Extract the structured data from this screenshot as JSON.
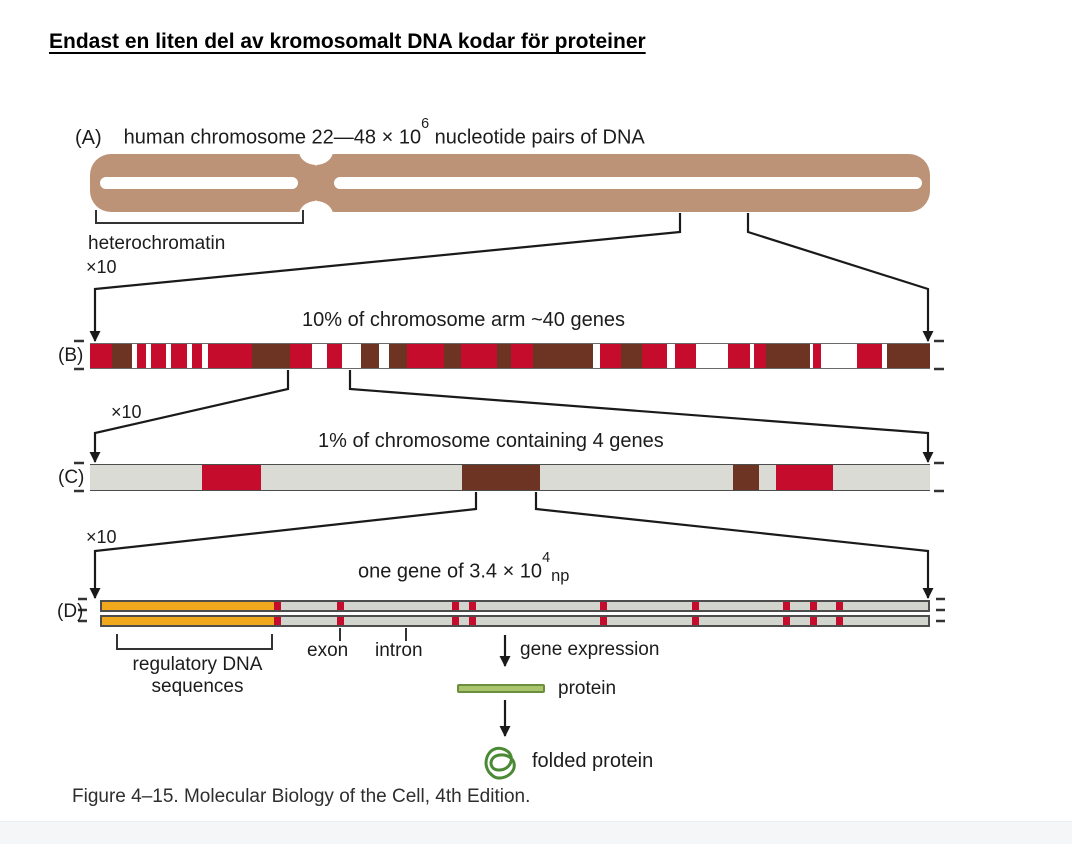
{
  "title": "Endast en liten del av kromosomalt DNA kodar för proteiner",
  "colors": {
    "chromosome_tan": "#bd9377",
    "red": "#c60c2d",
    "maroon": "#6e3423",
    "gray_c": "#d9dbd4",
    "gray_d": "#d2d4ce",
    "orange": "#f0a91c",
    "protein_green_fill": "#aac46c",
    "protein_green_edge": "#6b8f3e",
    "folded_protein_green": "#4a8a35"
  },
  "zoom_label": "×10",
  "panelA": {
    "label": "(A)",
    "caption_pre": "human chromosome 22—48 × 10",
    "caption_sup": "6",
    "caption_post": " nucleotide pairs of DNA",
    "heterochromatin_label": "heterochromatin"
  },
  "panelB": {
    "label": "(B)",
    "caption": "10% of chromosome arm ~40 genes",
    "segments": [
      {
        "c": "red",
        "w": 2.6
      },
      {
        "c": "maroon",
        "w": 2.4
      },
      {
        "c": "white",
        "w": 0.6
      },
      {
        "c": "red",
        "w": 1.1
      },
      {
        "c": "white",
        "w": 0.6
      },
      {
        "c": "red",
        "w": 1.7
      },
      {
        "c": "white",
        "w": 0.7
      },
      {
        "c": "red",
        "w": 1.8
      },
      {
        "c": "white",
        "w": 0.6
      },
      {
        "c": "red",
        "w": 1.3
      },
      {
        "c": "white",
        "w": 0.7
      },
      {
        "c": "red",
        "w": 5.2
      },
      {
        "c": "maroon",
        "w": 4.5
      },
      {
        "c": "red",
        "w": 2.6
      },
      {
        "c": "white",
        "w": 1.8
      },
      {
        "c": "red",
        "w": 1.8
      },
      {
        "c": "white",
        "w": 2.3
      },
      {
        "c": "maroon",
        "w": 2.1
      },
      {
        "c": "white",
        "w": 1.2
      },
      {
        "c": "maroon",
        "w": 2.1
      },
      {
        "c": "red",
        "w": 4.5
      },
      {
        "c": "maroon",
        "w": 2.0
      },
      {
        "c": "red",
        "w": 4.3
      },
      {
        "c": "maroon",
        "w": 1.7
      },
      {
        "c": "red",
        "w": 2.6
      },
      {
        "c": "maroon",
        "w": 7.1
      },
      {
        "c": "white",
        "w": 0.9
      },
      {
        "c": "red",
        "w": 2.4
      },
      {
        "c": "maroon",
        "w": 2.5
      },
      {
        "c": "red",
        "w": 3.0
      },
      {
        "c": "white",
        "w": 1.0
      },
      {
        "c": "red",
        "w": 2.5
      },
      {
        "c": "white",
        "w": 3.8
      },
      {
        "c": "red",
        "w": 2.6
      },
      {
        "c": "white",
        "w": 0.5
      },
      {
        "c": "red",
        "w": 1.4
      },
      {
        "c": "maroon",
        "w": 5.2
      },
      {
        "c": "white",
        "w": 0.4
      },
      {
        "c": "red",
        "w": 1.0
      },
      {
        "c": "white",
        "w": 4.3
      },
      {
        "c": "red",
        "w": 2.9
      },
      {
        "c": "white",
        "w": 0.6
      },
      {
        "c": "maroon",
        "w": 5.1
      }
    ]
  },
  "panelC": {
    "label": "(C)",
    "caption": "1% of chromosome containing 4 genes",
    "segments": [
      {
        "c": "gray",
        "w": 13.3
      },
      {
        "c": "red",
        "w": 7.0
      },
      {
        "c": "gray",
        "w": 24.0
      },
      {
        "c": "maroon",
        "w": 9.3
      },
      {
        "c": "gray",
        "w": 23.0
      },
      {
        "c": "maroon",
        "w": 3.1
      },
      {
        "c": "gray",
        "w": 2.0
      },
      {
        "c": "red",
        "w": 6.7
      },
      {
        "c": "gray",
        "w": 11.6
      }
    ]
  },
  "panelD": {
    "label": "(D)",
    "caption_pre": "one gene of 3.4 × 10",
    "caption_sup": "4",
    "caption_sub": "np",
    "regulatory_line1": "regulatory DNA",
    "regulatory_line2": "sequences",
    "exon_label": "exon",
    "intron_label": "intron",
    "orange_pct": 20.8,
    "stripe_positions_pct": [
      21.3,
      28.9,
      42.8,
      44.8,
      60.7,
      71.8,
      82.9,
      86.1,
      89.3
    ],
    "stripe_width_pct": 0.85
  },
  "expression": {
    "gene_expression_label": "gene expression",
    "protein_label": "protein",
    "folded_protein_label": "folded protein"
  },
  "figure_caption": "Figure 4–15. Molecular Biology of the Cell, 4th Edition."
}
